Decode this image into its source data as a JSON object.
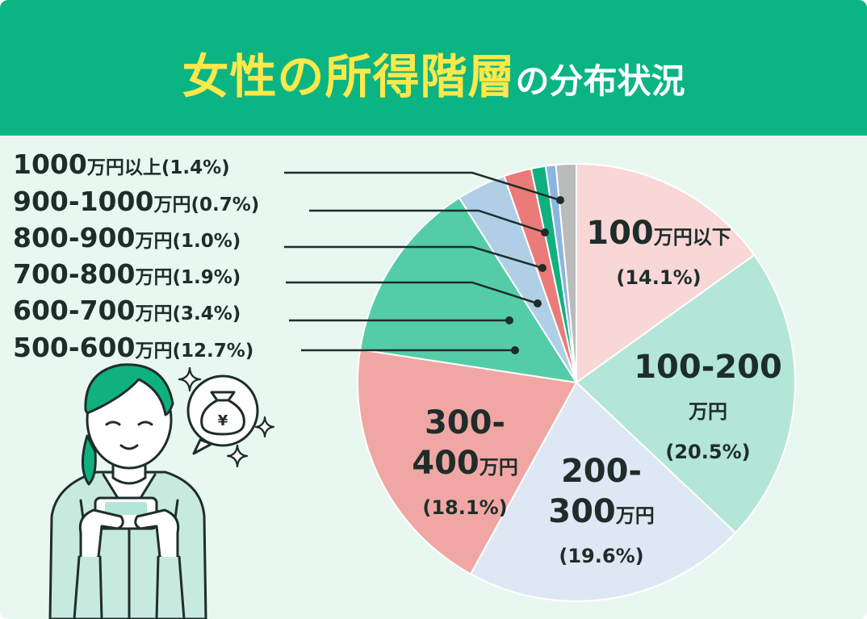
{
  "header": {
    "title_main": "女性の所得階層",
    "title_sub": "の分布状況"
  },
  "colors": {
    "header_bg": "#0bb583",
    "title_main": "#fde94a",
    "title_sub": "#ffffff",
    "background": "#e9f7f1"
  },
  "legend": [
    {
      "range": "1000",
      "unit": "万円以上",
      "pct": "(1.4%)"
    },
    {
      "range": "900-1000",
      "unit": "万円",
      "pct": "(0.7%)"
    },
    {
      "range": "800-900",
      "unit": "万円",
      "pct": "(1.0%)"
    },
    {
      "range": "700-800",
      "unit": "万円",
      "pct": "(1.9%)"
    },
    {
      "range": "600-700",
      "unit": "万円",
      "pct": "(3.4%)"
    },
    {
      "range": "500-600",
      "unit": "万円",
      "pct": "(12.7%)"
    }
  ],
  "chart_data": {
    "type": "pie",
    "start_angle_deg": 0,
    "direction": "clockwise",
    "slices": [
      {
        "label": "100万円以下",
        "label_lines": [
          {
            "big": "100",
            "small": "万円以下"
          },
          {
            "small": "(14.1%)"
          }
        ],
        "value": 14.1,
        "color": "#f8d7d6"
      },
      {
        "label": "100-200万円",
        "label_lines": [
          {
            "big": "100-200"
          },
          {
            "small": "万円"
          },
          {
            "small": "(20.5%)"
          }
        ],
        "value": 20.5,
        "color": "#b3e6d7"
      },
      {
        "label": "200-300万円",
        "label_lines": [
          {
            "big": "200-"
          },
          {
            "big": "300",
            "small": "万円"
          },
          {
            "small": "(19.6%)"
          }
        ],
        "value": 19.6,
        "color": "#dde8f4"
      },
      {
        "label": "300-400万円",
        "label_lines": [
          {
            "big": "300-"
          },
          {
            "big": "400",
            "small": "万円"
          },
          {
            "small": "(18.1%)"
          }
        ],
        "value": 18.1,
        "color": "#f0a7a4"
      },
      {
        "label": "500-600万円",
        "value": 12.7,
        "color": "#54cca8"
      },
      {
        "label": "600-700万円",
        "value": 3.4,
        "color": "#b0cfe6"
      },
      {
        "label": "700-800万円",
        "value": 1.9,
        "color": "#eb7b79"
      },
      {
        "label": "800-900万円",
        "value": 1.0,
        "color": "#0fb27f"
      },
      {
        "label": "900-1000万円",
        "value": 0.7,
        "color": "#8bb5df"
      },
      {
        "label": "1000万円以上",
        "value": 1.4,
        "color": "#b9bcbb"
      }
    ]
  }
}
